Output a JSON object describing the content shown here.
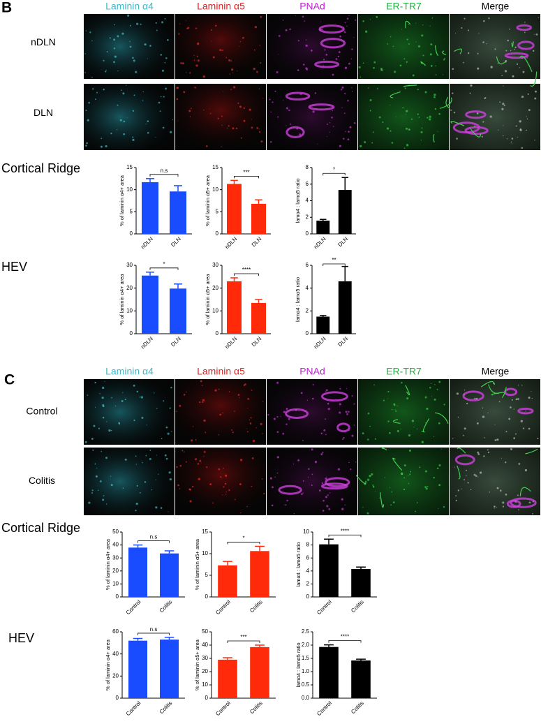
{
  "panels": [
    {
      "label": "B",
      "columns": [
        "Laminin α4",
        "Laminin α5",
        "PNAd",
        "ER-TR7",
        "Merge"
      ],
      "rows": [
        "nDLN",
        "DLN"
      ],
      "sections": [
        "Cortical Ridge",
        "HEV"
      ]
    },
    {
      "label": "C",
      "columns": [
        "Laminin α4",
        "Laminin α5",
        "PNAd",
        "ER-TR7",
        "Merge"
      ],
      "rows": [
        "Control",
        "Colitis"
      ],
      "sections": [
        "Cortical Ridge",
        "HEV"
      ]
    }
  ],
  "chart_data": [
    {
      "type": "bar",
      "ylabel": "% of laminin α4+ area",
      "categories": [
        "nDLN",
        "DLN"
      ],
      "values": [
        11.7,
        9.6
      ],
      "errors": [
        0.8,
        1.3
      ],
      "color": "#1a4cff",
      "ylim": [
        0,
        15
      ],
      "yticks": [
        0,
        5,
        10,
        15
      ],
      "annotation": "n.s"
    },
    {
      "type": "bar",
      "ylabel": "% of laminin α5+ area",
      "categories": [
        "nDLN",
        "DLN"
      ],
      "values": [
        11.3,
        6.8
      ],
      "errors": [
        0.8,
        0.9
      ],
      "color": "#ff2a0a",
      "ylim": [
        0,
        15
      ],
      "yticks": [
        0,
        5,
        10,
        15
      ],
      "annotation": "***"
    },
    {
      "type": "bar",
      "ylabel": "lamα4 : lamα5 ratio",
      "categories": [
        "nDLN",
        "DLN"
      ],
      "values": [
        1.6,
        5.3
      ],
      "errors": [
        0.15,
        1.5
      ],
      "color": "#000000",
      "ylim": [
        0,
        8
      ],
      "yticks": [
        0,
        2,
        4,
        6,
        8
      ],
      "annotation": "*"
    },
    {
      "type": "bar",
      "ylabel": "% of laminin α4+ area",
      "categories": [
        "nDLN",
        "DLN"
      ],
      "values": [
        25.5,
        19.8
      ],
      "errors": [
        1.5,
        2
      ],
      "color": "#1a4cff",
      "ylim": [
        0,
        30
      ],
      "yticks": [
        0,
        10,
        20,
        30
      ],
      "annotation": "*"
    },
    {
      "type": "bar",
      "ylabel": "% of laminin α5+ area",
      "categories": [
        "nDLN",
        "DLN"
      ],
      "values": [
        23,
        13.5
      ],
      "errors": [
        1.5,
        1.5
      ],
      "color": "#ff2a0a",
      "ylim": [
        0,
        30
      ],
      "yticks": [
        0,
        10,
        20,
        30
      ],
      "annotation": "****"
    },
    {
      "type": "bar",
      "ylabel": "lamα4 : lamα5 ratio",
      "categories": [
        "nDLN",
        "DLN"
      ],
      "values": [
        1.5,
        4.6
      ],
      "errors": [
        0.1,
        1.3
      ],
      "color": "#000000",
      "ylim": [
        0,
        6
      ],
      "yticks": [
        0,
        2,
        4,
        6
      ],
      "annotation": "**"
    },
    {
      "type": "bar",
      "ylabel": "% of laminin α4+ area",
      "categories": [
        "Control",
        "Colitis"
      ],
      "values": [
        38,
        33.5
      ],
      "errors": [
        2,
        2
      ],
      "color": "#1a4cff",
      "ylim": [
        0,
        50
      ],
      "yticks": [
        0,
        10,
        20,
        30,
        40,
        50
      ],
      "annotation": "n.s"
    },
    {
      "type": "bar",
      "ylabel": "% of laminin α5+ area",
      "categories": [
        "Control",
        "Colitis"
      ],
      "values": [
        7.3,
        10.6
      ],
      "errors": [
        0.9,
        1.1
      ],
      "color": "#ff2a0a",
      "ylim": [
        0,
        15
      ],
      "yticks": [
        0,
        5,
        10,
        15
      ],
      "annotation": "*"
    },
    {
      "type": "bar",
      "ylabel": "lamα4 : lamα5 ratio",
      "categories": [
        "Control",
        "Colitis"
      ],
      "values": [
        8.1,
        4.3
      ],
      "errors": [
        0.8,
        0.3
      ],
      "color": "#000000",
      "ylim": [
        0,
        10
      ],
      "yticks": [
        0,
        2,
        4,
        6,
        8,
        10
      ],
      "annotation": "****"
    },
    {
      "type": "bar",
      "ylabel": "% of laminin α4+ area",
      "categories": [
        "Control",
        "Colitis"
      ],
      "values": [
        52,
        53
      ],
      "errors": [
        2,
        2
      ],
      "color": "#1a4cff",
      "ylim": [
        0,
        60
      ],
      "yticks": [
        0,
        20,
        40,
        60
      ],
      "annotation": "n.s"
    },
    {
      "type": "bar",
      "ylabel": "% of laminin α5+ area",
      "categories": [
        "Control",
        "Colitis"
      ],
      "values": [
        29,
        38.5
      ],
      "errors": [
        1.5,
        1.5
      ],
      "color": "#ff2a0a",
      "ylim": [
        0,
        50
      ],
      "yticks": [
        0,
        10,
        20,
        30,
        40,
        50
      ],
      "annotation": "***"
    },
    {
      "type": "bar",
      "ylabel": "lamα4 : lamα5 ratio",
      "categories": [
        "Control",
        "Colitis"
      ],
      "values": [
        1.93,
        1.42
      ],
      "errors": [
        0.08,
        0.05
      ],
      "color": "#000000",
      "ylim": [
        0,
        2.5
      ],
      "yticks": [
        {
          "value": 0,
          "label": "0.0"
        },
        0.5,
        {
          "value": 1,
          "label": "1.0"
        },
        1.5,
        {
          "value": 2,
          "label": "2.0"
        },
        2.5
      ],
      "annotation": "****"
    }
  ]
}
